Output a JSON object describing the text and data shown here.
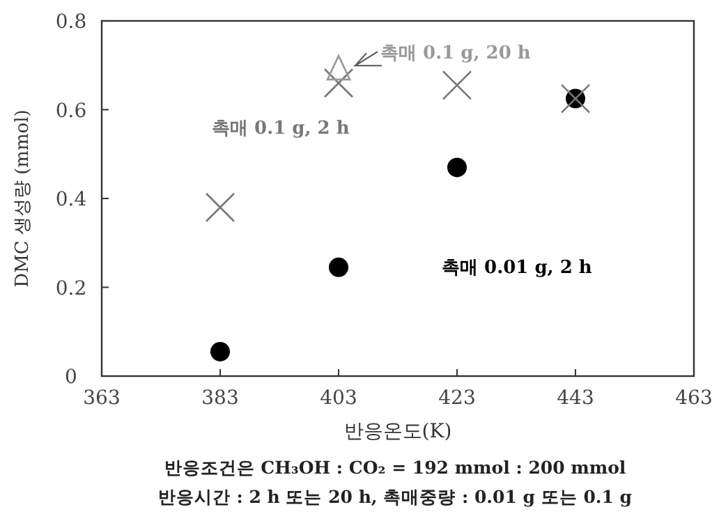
{
  "chart_data": {
    "type": "scatter",
    "xlabel": "반응온도(K)",
    "ylabel": "DMC 생성량 (mmol)",
    "xlim": [
      363,
      463
    ],
    "xticks": [
      363,
      383,
      403,
      423,
      443,
      463
    ],
    "ylim": [
      0,
      0.8
    ],
    "yticks": [
      0,
      0.2,
      0.4,
      0.6,
      0.8
    ],
    "grid": false,
    "series": [
      {
        "name": "촉매 0.01 g, 2 h",
        "color": "#000000",
        "marker": "circle",
        "x": [
          383,
          403,
          423,
          443
        ],
        "values": [
          0.055,
          0.245,
          0.47,
          0.625
        ]
      },
      {
        "name": "촉매 0.1 g, 2 h",
        "color": "#777777",
        "marker": "cross",
        "x": [
          383,
          403,
          423,
          443
        ],
        "values": [
          0.38,
          0.66,
          0.655,
          0.625
        ]
      },
      {
        "name": "촉매 0.1 g, 20 h",
        "color": "#999999",
        "marker": "triangle",
        "x": [
          403
        ],
        "values": [
          0.69
        ]
      }
    ],
    "annotations": [
      "반응조건은 CH₃OH : CO₂ = 192 mmol : 200 mmol",
      "반응시간 : 2 h 또는 20 h, 촉매중량 : 0.01 g 또는 0.1 g"
    ]
  }
}
